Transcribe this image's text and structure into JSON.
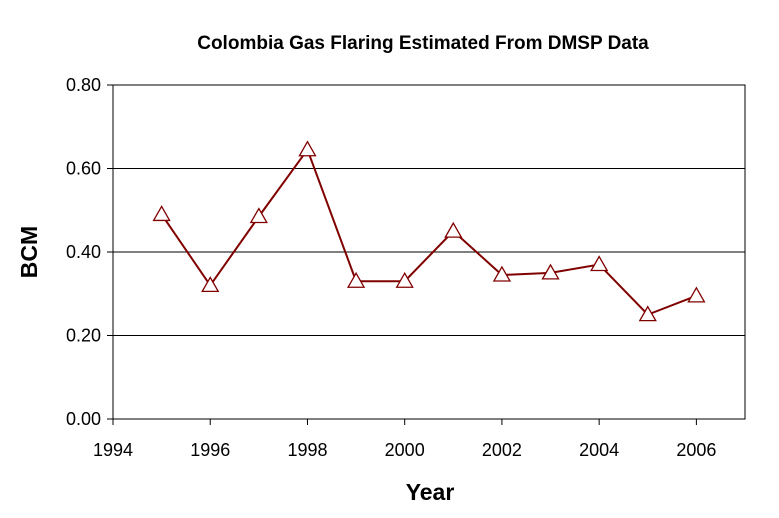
{
  "chart_data": {
    "type": "line",
    "title": "Colombia Gas Flaring Estimated From DMSP Data",
    "xlabel": "Year",
    "ylabel": "BCM",
    "xlim": [
      1994,
      2007
    ],
    "ylim": [
      0,
      0.8
    ],
    "x_ticks": [
      1994,
      1996,
      1998,
      2000,
      2002,
      2004,
      2006
    ],
    "x_tick_labels": [
      "1994",
      "1996",
      "1998",
      "2000",
      "2002",
      "2004",
      "2006"
    ],
    "y_ticks": [
      0,
      0.2,
      0.4,
      0.6,
      0.8
    ],
    "y_tick_labels": [
      "0.00",
      "0.20",
      "0.40",
      "0.60",
      "0.80"
    ],
    "grid": "horizontal",
    "legend": "none",
    "series": [
      {
        "x": [
          1995,
          1996,
          1997,
          1998,
          1999,
          2000,
          2001,
          2002,
          2003,
          2004,
          2005,
          2006
        ],
        "y": [
          0.49,
          0.32,
          0.485,
          0.645,
          0.33,
          0.33,
          0.45,
          0.345,
          0.35,
          0.37,
          0.25,
          0.295
        ],
        "color": "#800000",
        "marker": "triangle"
      }
    ]
  }
}
